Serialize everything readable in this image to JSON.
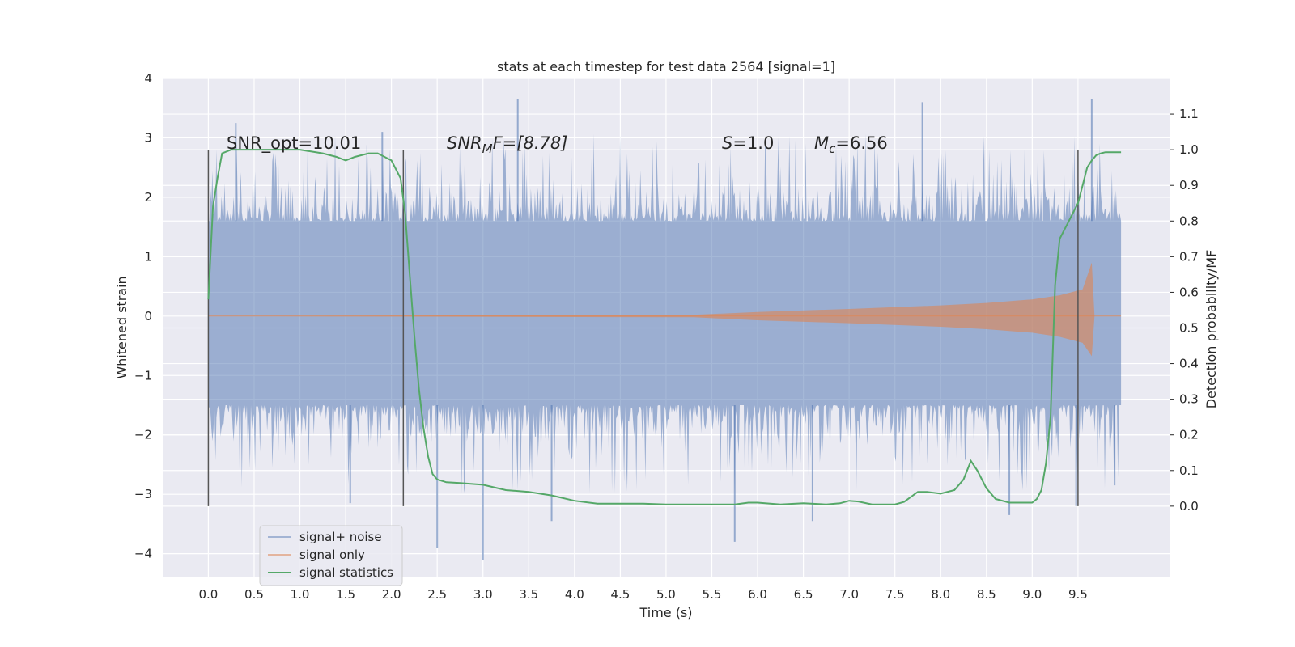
{
  "chart_data": {
    "type": "line",
    "title": "stats at each timestep for test data 2564 [signal=1]",
    "xlabel": "Time (s)",
    "ylabel": "Whitened strain",
    "y2label": "Detection probability/MF",
    "xlim": [
      -0.49,
      10.5
    ],
    "ylim": [
      -4.4,
      4.0
    ],
    "y2lim": [
      -0.2,
      1.2
    ],
    "x_ticks": [
      "0.0",
      "0.5",
      "1.0",
      "1.5",
      "2.0",
      "2.5",
      "3.0",
      "3.5",
      "4.0",
      "4.5",
      "5.0",
      "5.5",
      "6.0",
      "6.5",
      "7.0",
      "7.5",
      "8.0",
      "8.5",
      "9.0",
      "9.5"
    ],
    "y_ticks": [
      "4",
      "3",
      "2",
      "1",
      "0",
      "−1",
      "−2",
      "−3",
      "−4"
    ],
    "y2_ticks": [
      "1.1",
      "1.0",
      "0.9",
      "0.8",
      "0.7",
      "0.6",
      "0.5",
      "0.4",
      "0.3",
      "0.2",
      "0.1",
      "0.0"
    ],
    "grid": true,
    "legend_position": "lower-left",
    "annotations": {
      "snr_opt": "SNR_opt=10.01",
      "snr_mf_main": "SNR",
      "snr_mf_sub": "M",
      "snr_mf_rest": "F=[8.78]",
      "s_main": "S",
      "s_rest": "=1.0",
      "mc_main": "M",
      "mc_sub": "c",
      "mc_rest": "=6.56"
    },
    "vertical_lines_x": [
      0.0,
      2.13,
      9.5
    ],
    "series": [
      {
        "name": "signal+ noise",
        "color": "#4c72b0",
        "description_values": {
          "x_range": [
            0.0,
            9.97
          ],
          "envelope_typical": [
            -1.5,
            1.6
          ],
          "extremes": [
            -4.1,
            3.65
          ]
        },
        "spikes": [
          [
            0.3,
            3.25
          ],
          [
            1.9,
            3.1
          ],
          [
            3.38,
            3.65
          ],
          [
            7.8,
            3.6
          ],
          [
            9.65,
            3.65
          ],
          [
            2.5,
            -3.9
          ],
          [
            3.0,
            -4.1
          ],
          [
            3.75,
            -3.45
          ],
          [
            5.75,
            -3.8
          ],
          [
            6.6,
            -3.45
          ],
          [
            8.75,
            -3.35
          ],
          [
            9.48,
            -3.2
          ],
          [
            1.55,
            -3.15
          ],
          [
            9.9,
            -2.85
          ]
        ]
      },
      {
        "name": "signal only",
        "color": "#dd8452",
        "amplitude_envelope": [
          [
            0.0,
            0.0
          ],
          [
            5.3,
            0.02
          ],
          [
            6.0,
            0.07
          ],
          [
            7.0,
            0.12
          ],
          [
            8.0,
            0.18
          ],
          [
            8.5,
            0.22
          ],
          [
            9.0,
            0.28
          ],
          [
            9.3,
            0.35
          ],
          [
            9.55,
            0.45
          ],
          [
            9.65,
            0.9
          ],
          [
            9.68,
            0.0
          ],
          [
            9.97,
            0.0
          ]
        ]
      },
      {
        "name": "signal statistics",
        "color": "#55a868",
        "axis": "right",
        "x": [
          0.0,
          0.05,
          0.1,
          0.15,
          0.25,
          0.5,
          0.75,
          1.0,
          1.25,
          1.4,
          1.5,
          1.6,
          1.75,
          1.85,
          2.0,
          2.1,
          2.15,
          2.2,
          2.25,
          2.3,
          2.35,
          2.4,
          2.45,
          2.5,
          2.6,
          2.75,
          3.0,
          3.25,
          3.5,
          3.75,
          4.0,
          4.25,
          4.5,
          4.75,
          5.0,
          5.25,
          5.5,
          5.75,
          5.9,
          6.0,
          6.25,
          6.5,
          6.75,
          6.9,
          7.0,
          7.1,
          7.25,
          7.5,
          7.6,
          7.75,
          7.85,
          8.0,
          8.15,
          8.25,
          8.33,
          8.4,
          8.5,
          8.6,
          8.75,
          8.9,
          9.0,
          9.05,
          9.1,
          9.15,
          9.2,
          9.25,
          9.3,
          9.4,
          9.5,
          9.55,
          9.6,
          9.65,
          9.7,
          9.75,
          9.8,
          9.9,
          9.97
        ],
        "y": [
          0.58,
          0.84,
          0.92,
          0.99,
          1.0,
          1.0,
          1.0,
          1.0,
          0.99,
          0.98,
          0.97,
          0.98,
          0.99,
          0.99,
          0.97,
          0.92,
          0.82,
          0.65,
          0.48,
          0.33,
          0.22,
          0.14,
          0.09,
          0.075,
          0.067,
          0.065,
          0.06,
          0.045,
          0.04,
          0.03,
          0.015,
          0.007,
          0.007,
          0.007,
          0.005,
          0.005,
          0.005,
          0.005,
          0.01,
          0.01,
          0.005,
          0.008,
          0.005,
          0.008,
          0.015,
          0.013,
          0.005,
          0.005,
          0.012,
          0.04,
          0.04,
          0.035,
          0.045,
          0.075,
          0.127,
          0.1,
          0.05,
          0.02,
          0.01,
          0.01,
          0.01,
          0.02,
          0.045,
          0.12,
          0.25,
          0.62,
          0.75,
          0.8,
          0.85,
          0.9,
          0.95,
          0.97,
          0.985,
          0.99,
          0.993,
          0.993,
          0.993
        ]
      }
    ]
  }
}
